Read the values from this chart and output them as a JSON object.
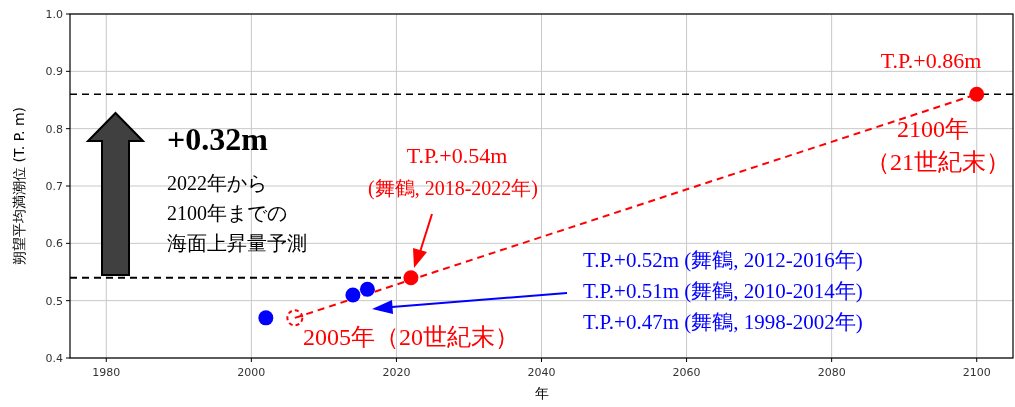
{
  "chart_data": {
    "type": "scatter",
    "xlabel": "年",
    "ylabel": "朔望平均満潮位 (T. P. m)",
    "xlim": [
      1975,
      2105
    ],
    "ylim": [
      0.4,
      1.0
    ],
    "xticks": [
      1980,
      2000,
      2020,
      2040,
      2060,
      2080,
      2100
    ],
    "yticks": [
      0.4,
      0.5,
      0.6,
      0.7,
      0.8,
      0.9,
      {
        "value": 1.0,
        "label": "1.0"
      }
    ],
    "grid": true,
    "marker": "circle",
    "ref_lines": [
      {
        "axis": "y",
        "value": 0.86,
        "color": "#000000",
        "line_style": "dashed"
      }
    ],
    "series": [
      {
        "type": "line",
        "color": "#ff0000",
        "line_style": "dashed",
        "marker": "none",
        "x": [
          2006,
          2100
        ],
        "values": [
          0.47,
          0.86
        ]
      },
      {
        "type": "line",
        "color": "#000000",
        "line_style": "dashed",
        "marker": "none",
        "x": [
          1975,
          2022
        ],
        "values": [
          0.54,
          0.54
        ]
      },
      {
        "color": "#0000ff",
        "x": [
          2002,
          2014,
          2016
        ],
        "values": [
          0.47,
          0.51,
          0.52
        ]
      },
      {
        "color": "#ff0000",
        "line_style": "dashed",
        "x": [
          2006
        ],
        "values": [
          0.47
        ]
      },
      {
        "color": "#ff0000",
        "x": [
          2022,
          2100
        ],
        "values": [
          0.54,
          0.86
        ]
      }
    ],
    "annotations": [
      "T.P.+0.86m",
      "2100年",
      "（21世紀末）",
      "T.P.+0.54m",
      "(舞鶴, 2018-2022年)",
      "T.P.+0.52m (舞鶴, 2012-2016年)",
      "T.P.+0.51m (舞鶴, 2010-2014年)",
      "T.P.+0.47m (舞鶴, 1998-2002年)",
      "2005年（20世紀末）",
      "+0.32m",
      "2022年から",
      "2100年までの",
      "海面上昇量予測"
    ]
  }
}
